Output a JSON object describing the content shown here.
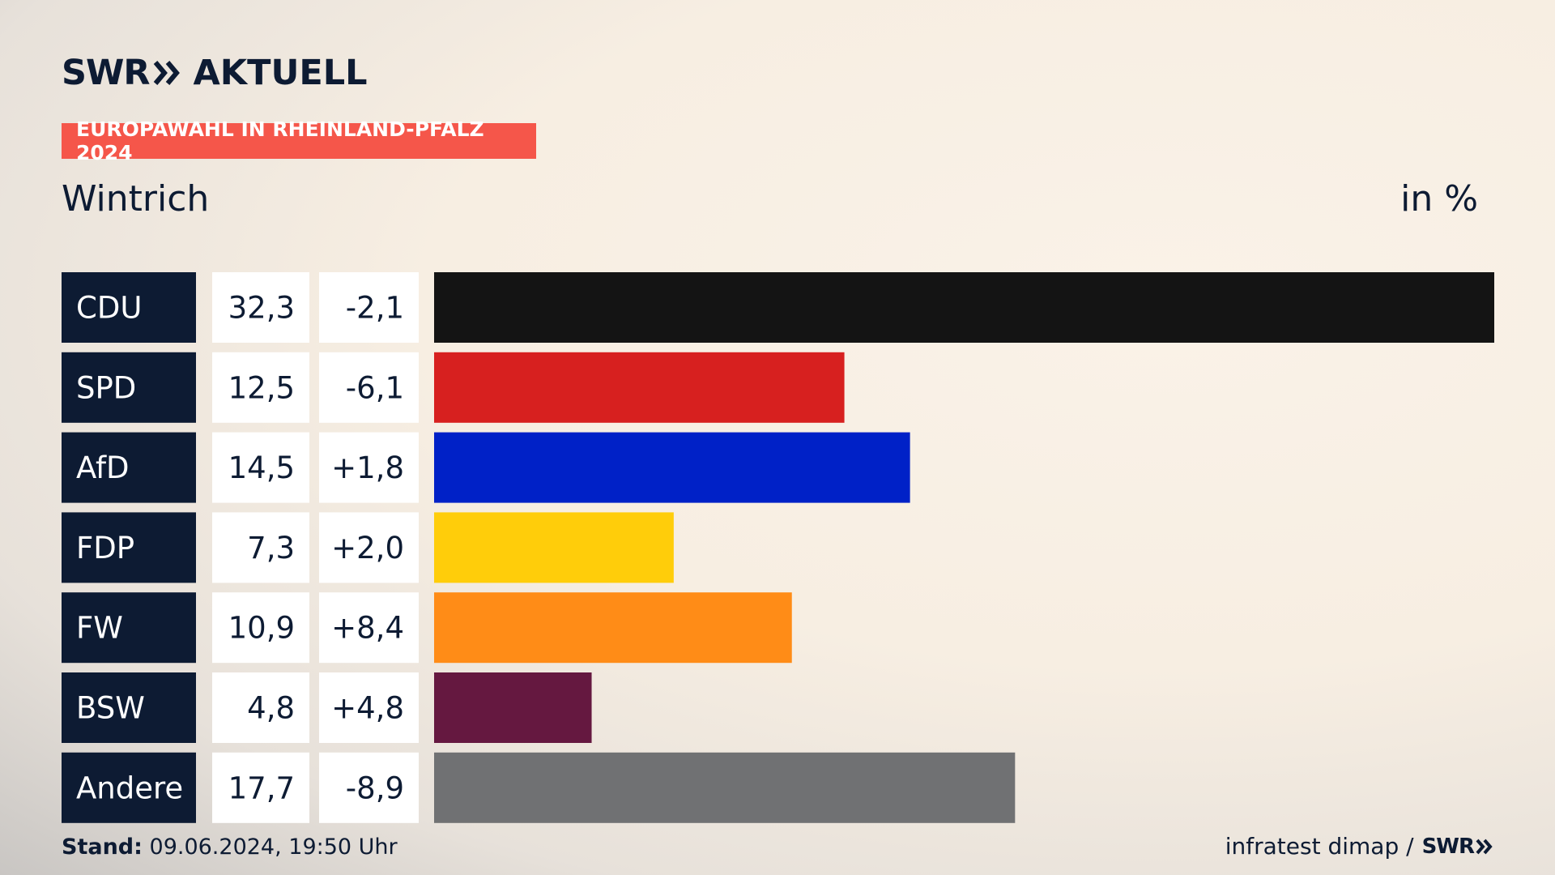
{
  "brand": {
    "swr": "SWR",
    "product": "AKTUELL"
  },
  "badge": "EUROPAWAHL IN RHEINLAND-PFALZ 2024",
  "region": "Wintrich",
  "unit": "in %",
  "footer": {
    "stand_label": "Stand:",
    "stand_value": "09.06.2024, 19:50 Uhr",
    "source": "infratest dimap /",
    "source_brand": "SWR"
  },
  "chart_data": {
    "type": "bar",
    "orientation": "horizontal",
    "title": "Wintrich",
    "ylabel": "in %",
    "categories": [
      "CDU",
      "SPD",
      "AfD",
      "FDP",
      "FW",
      "BSW",
      "Andere"
    ],
    "values": [
      32.3,
      12.5,
      14.5,
      7.3,
      10.9,
      4.8,
      17.7
    ],
    "value_labels": [
      "32,3",
      "12,5",
      "14,5",
      "7,3",
      "10,9",
      "4,8",
      "17,7"
    ],
    "changes": [
      "-2,1",
      "-6,1",
      "+1,8",
      "+2,0",
      "+8,4",
      "+4,8",
      "-8,9"
    ],
    "colors": [
      "#141414",
      "#d7201f",
      "#0021c7",
      "#ffcd0a",
      "#ff8c17",
      "#651840",
      "#707173"
    ],
    "xlim": [
      0,
      32.3
    ]
  }
}
